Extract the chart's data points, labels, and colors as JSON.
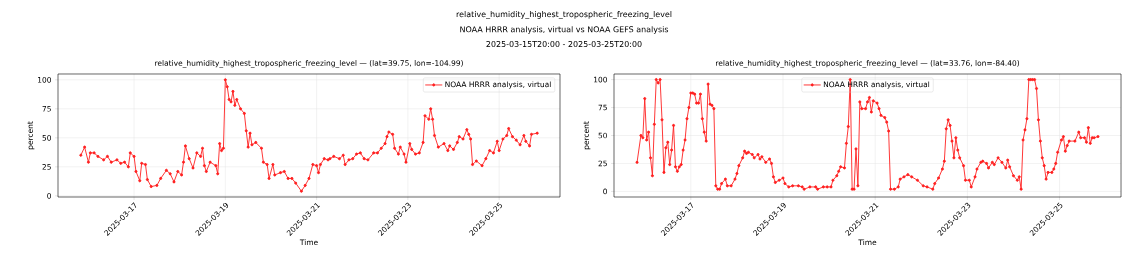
{
  "chart_data": [
    {
      "type": "other",
      "title": "relative_humidity_highest_tropospheric_freezing_level",
      "subtitle": "NOAA HRRR analysis, virtual vs NOAA GEFS analysis",
      "annotations": [
        "2025-03-15T20:00 - 2025-03-25T20:00"
      ]
    },
    {
      "type": "line",
      "title": "relative_humidity_highest_tropospheric_freezing_level — (lat=39.75, lon=-104.99)",
      "xlabel": "Time",
      "ylabel": "percent",
      "xlim": [
        "2025-03-15T08:00",
        "2025-03-26T08:00"
      ],
      "xticks": [
        "2025-03-17",
        "2025-03-19",
        "2025-03-21",
        "2025-03-23",
        "2025-03-25"
      ],
      "ylim": [
        -1,
        105
      ],
      "yticks": [
        0,
        25,
        50,
        75,
        100
      ],
      "grid": true,
      "legend": "top right",
      "marker": "circle",
      "line_style": "solid",
      "series": [
        {
          "name": "NOAA HRRR analysis, virtual",
          "color": "#ff2020",
          "x": [
            "2025-03-15T20:00",
            "2025-03-15T22:00",
            "2025-03-16T00:00",
            "2025-03-16T01:00",
            "2025-03-16T03:00",
            "2025-03-16T05:00",
            "2025-03-16T08:00",
            "2025-03-16T10:00",
            "2025-03-16T12:00",
            "2025-03-16T15:00",
            "2025-03-16T17:00",
            "2025-03-16T19:00",
            "2025-03-16T21:00",
            "2025-03-16T22:00",
            "2025-03-17T00:00",
            "2025-03-17T01:00",
            "2025-03-17T03:00",
            "2025-03-17T04:00",
            "2025-03-17T06:00",
            "2025-03-17T07:00",
            "2025-03-17T09:00",
            "2025-03-17T12:00",
            "2025-03-17T14:00",
            "2025-03-17T17:00",
            "2025-03-17T19:00",
            "2025-03-17T21:00",
            "2025-03-17T23:00",
            "2025-03-18T01:00",
            "2025-03-18T02:00",
            "2025-03-18T03:00",
            "2025-03-18T05:00",
            "2025-03-18T07:00",
            "2025-03-18T09:00",
            "2025-03-18T11:00",
            "2025-03-18T12:00",
            "2025-03-18T13:00",
            "2025-03-18T14:00",
            "2025-03-18T16:00",
            "2025-03-18T19:00",
            "2025-03-18T20:00",
            "2025-03-18T21:00",
            "2025-03-18T22:00",
            "2025-03-18T23:00",
            "2025-03-19T00:00",
            "2025-03-19T01:00",
            "2025-03-19T02:00",
            "2025-03-19T03:00",
            "2025-03-19T04:00",
            "2025-03-19T05:00",
            "2025-03-19T06:00",
            "2025-03-19T08:00",
            "2025-03-19T10:00",
            "2025-03-19T11:00",
            "2025-03-19T12:00",
            "2025-03-19T13:00",
            "2025-03-19T14:00",
            "2025-03-19T16:00",
            "2025-03-19T19:00",
            "2025-03-19T20:00",
            "2025-03-19T22:00",
            "2025-03-19T23:00",
            "2025-03-20T01:00",
            "2025-03-20T02:00",
            "2025-03-20T05:00",
            "2025-03-20T07:00",
            "2025-03-20T09:00",
            "2025-03-20T11:00",
            "2025-03-20T13:00",
            "2025-03-20T16:00",
            "2025-03-20T18:00",
            "2025-03-20T20:00",
            "2025-03-20T22:00",
            "2025-03-21T00:00",
            "2025-03-21T01:00",
            "2025-03-21T02:00",
            "2025-03-21T04:00",
            "2025-03-21T06:00",
            "2025-03-21T07:00",
            "2025-03-21T09:00",
            "2025-03-21T12:00",
            "2025-03-21T14:00",
            "2025-03-21T15:00",
            "2025-03-21T17:00",
            "2025-03-21T19:00",
            "2025-03-21T21:00",
            "2025-03-21T23:00",
            "2025-03-22T01:00",
            "2025-03-22T03:00",
            "2025-03-22T06:00",
            "2025-03-22T08:00",
            "2025-03-22T10:00",
            "2025-03-22T12:00",
            "2025-03-22T13:00",
            "2025-03-22T14:00",
            "2025-03-22T16:00",
            "2025-03-22T17:00",
            "2025-03-22T19:00",
            "2025-03-22T20:00",
            "2025-03-22T22:00",
            "2025-03-22T23:00",
            "2025-03-23T01:00",
            "2025-03-23T02:00",
            "2025-03-23T04:00",
            "2025-03-23T06:00",
            "2025-03-23T08:00",
            "2025-03-23T09:00",
            "2025-03-23T11:00",
            "2025-03-23T12:00",
            "2025-03-23T13:00",
            "2025-03-23T14:00",
            "2025-03-23T16:00",
            "2025-03-23T19:00",
            "2025-03-23T21:00",
            "2025-03-23T22:00",
            "2025-03-24T00:00",
            "2025-03-24T02:00",
            "2025-03-24T03:00",
            "2025-03-24T05:00",
            "2025-03-24T07:00",
            "2025-03-24T08:00",
            "2025-03-24T09:00",
            "2025-03-24T10:00",
            "2025-03-24T12:00",
            "2025-03-24T15:00",
            "2025-03-24T17:00",
            "2025-03-24T19:00",
            "2025-03-24T21:00",
            "2025-03-24T23:00",
            "2025-03-25T00:00",
            "2025-03-25T02:00",
            "2025-03-25T04:00",
            "2025-03-25T05:00",
            "2025-03-25T07:00",
            "2025-03-25T09:00",
            "2025-03-25T11:00",
            "2025-03-25T13:00",
            "2025-03-25T14:00",
            "2025-03-25T16:00",
            "2025-03-25T17:00",
            "2025-03-25T20:00"
          ],
          "values": [
            35,
            42,
            29,
            37,
            37,
            34,
            31,
            34,
            29,
            31,
            28,
            29,
            25,
            37,
            34,
            21,
            13,
            28,
            27,
            14,
            8,
            9,
            15,
            22,
            19,
            12,
            21,
            18,
            29,
            43,
            32,
            24,
            37,
            34,
            41,
            26,
            21,
            29,
            26,
            19,
            45,
            39,
            41,
            100,
            94,
            83,
            81,
            90,
            78,
            83,
            75,
            71,
            56,
            42,
            54,
            44,
            46,
            41,
            29,
            27,
            15,
            27,
            18,
            20,
            21,
            15,
            15,
            11,
            4,
            9,
            15,
            27,
            26,
            20,
            27,
            32,
            31,
            32,
            34,
            32,
            35,
            27,
            31,
            32,
            36,
            37,
            32,
            31,
            37,
            37,
            41,
            45,
            51,
            55,
            53,
            41,
            36,
            42,
            36,
            29,
            45,
            40,
            36,
            37,
            46,
            69,
            66,
            75,
            66,
            52,
            42,
            45,
            39,
            43,
            40,
            46,
            51,
            49,
            57,
            53,
            49,
            27,
            30,
            26,
            32,
            39,
            37,
            47,
            39,
            49,
            52,
            58,
            51,
            48,
            44,
            52,
            47,
            43,
            53,
            54
          ]
        }
      ]
    },
    {
      "type": "line",
      "title": "relative_humidity_highest_tropospheric_freezing_level — (lat=33.76, lon=-84.40)",
      "xlabel": "Time",
      "ylabel": "percent",
      "xlim": [
        "2025-03-15T08:00",
        "2025-03-26T08:00"
      ],
      "xticks": [
        "2025-03-17",
        "2025-03-19",
        "2025-03-21",
        "2025-03-23",
        "2025-03-25"
      ],
      "ylim": [
        -5,
        105
      ],
      "yticks": [
        0,
        25,
        50,
        75,
        100
      ],
      "grid": true,
      "legend": "top",
      "marker": "circle",
      "line_style": "solid",
      "series": [
        {
          "name": "NOAA HRRR analysis, virtual",
          "color": "#ff2020",
          "x": [
            "2025-03-15T20:00",
            "2025-03-15T22:00",
            "2025-03-15T23:00",
            "2025-03-16T00:00",
            "2025-03-16T01:00",
            "2025-03-16T02:00",
            "2025-03-16T03:00",
            "2025-03-16T04:00",
            "2025-03-16T05:00",
            "2025-03-16T06:00",
            "2025-03-16T07:00",
            "2025-03-16T08:00",
            "2025-03-16T09:00",
            "2025-03-16T10:00",
            "2025-03-16T11:00",
            "2025-03-16T12:00",
            "2025-03-16T13:00",
            "2025-03-16T14:00",
            "2025-03-16T15:00",
            "2025-03-16T16:00",
            "2025-03-16T17:00",
            "2025-03-16T18:00",
            "2025-03-16T19:00",
            "2025-03-16T20:00",
            "2025-03-16T21:00",
            "2025-03-16T22:00",
            "2025-03-16T23:00",
            "2025-03-17T00:00",
            "2025-03-17T01:00",
            "2025-03-17T02:00",
            "2025-03-17T03:00",
            "2025-03-17T04:00",
            "2025-03-17T05:00",
            "2025-03-17T06:00",
            "2025-03-17T07:00",
            "2025-03-17T08:00",
            "2025-03-17T09:00",
            "2025-03-17T10:00",
            "2025-03-17T11:00",
            "2025-03-17T12:00",
            "2025-03-17T13:00",
            "2025-03-17T14:00",
            "2025-03-17T15:00",
            "2025-03-17T16:00",
            "2025-03-17T18:00",
            "2025-03-17T19:00",
            "2025-03-17T21:00",
            "2025-03-17T23:00",
            "2025-03-18T00:00",
            "2025-03-18T01:00",
            "2025-03-18T03:00",
            "2025-03-18T04:00",
            "2025-03-18T05:00",
            "2025-03-18T06:00",
            "2025-03-18T08:00",
            "2025-03-18T09:00",
            "2025-03-18T11:00",
            "2025-03-18T12:00",
            "2025-03-18T13:00",
            "2025-03-18T15:00",
            "2025-03-18T17:00",
            "2025-03-18T18:00",
            "2025-03-18T19:00",
            "2025-03-18T20:00",
            "2025-03-18T22:00",
            "2025-03-19T00:00",
            "2025-03-19T01:00",
            "2025-03-19T03:00",
            "2025-03-19T05:00",
            "2025-03-19T08:00",
            "2025-03-19T10:00",
            "2025-03-19T11:00",
            "2025-03-19T14:00",
            "2025-03-19T17:00",
            "2025-03-19T18:00",
            "2025-03-19T21:00",
            "2025-03-19T23:00",
            "2025-03-20T01:00",
            "2025-03-20T02:00",
            "2025-03-20T04:00",
            "2025-03-20T05:00",
            "2025-03-20T06:00",
            "2025-03-20T08:00",
            "2025-03-20T09:00",
            "2025-03-20T10:00",
            "2025-03-20T11:00",
            "2025-03-20T12:00",
            "2025-03-20T13:00",
            "2025-03-20T14:00",
            "2025-03-20T15:00",
            "2025-03-20T16:00",
            "2025-03-20T17:00",
            "2025-03-20T19:00",
            "2025-03-20T20:00",
            "2025-03-20T21:00",
            "2025-03-20T22:00",
            "2025-03-20T23:00",
            "2025-03-21T01:00",
            "2025-03-21T02:00",
            "2025-03-21T03:00",
            "2025-03-21T05:00",
            "2025-03-21T06:00",
            "2025-03-21T07:00",
            "2025-03-21T08:00",
            "2025-03-21T10:00",
            "2025-03-21T12:00",
            "2025-03-21T13:00",
            "2025-03-21T15:00",
            "2025-03-21T17:00",
            "2025-03-21T19:00",
            "2025-03-21T22:00",
            "2025-03-22T01:00",
            "2025-03-22T03:00",
            "2025-03-22T06:00",
            "2025-03-22T07:00",
            "2025-03-22T09:00",
            "2025-03-22T11:00",
            "2025-03-22T12:00",
            "2025-03-22T13:00",
            "2025-03-22T14:00",
            "2025-03-22T15:00",
            "2025-03-22T16:00",
            "2025-03-22T17:00",
            "2025-03-22T18:00",
            "2025-03-22T19:00",
            "2025-03-22T20:00",
            "2025-03-22T22:00",
            "2025-03-22T23:00",
            "2025-03-23T01:00",
            "2025-03-23T02:00",
            "2025-03-23T04:00",
            "2025-03-23T05:00",
            "2025-03-23T07:00",
            "2025-03-23T08:00",
            "2025-03-23T10:00",
            "2025-03-23T11:00",
            "2025-03-23T13:00",
            "2025-03-23T14:00",
            "2025-03-23T16:00",
            "2025-03-23T18:00",
            "2025-03-23T20:00",
            "2025-03-23T21:00",
            "2025-03-23T22:00",
            "2025-03-24T00:00",
            "2025-03-24T02:00",
            "2025-03-24T03:00",
            "2025-03-24T04:00",
            "2025-03-24T05:00",
            "2025-03-24T06:00",
            "2025-03-24T07:00",
            "2025-03-24T08:00",
            "2025-03-24T09:00",
            "2025-03-24T10:00",
            "2025-03-24T11:00",
            "2025-03-24T12:00",
            "2025-03-24T13:00",
            "2025-03-24T14:00",
            "2025-03-24T15:00",
            "2025-03-24T16:00",
            "2025-03-24T17:00",
            "2025-03-24T18:00",
            "2025-03-24T20:00",
            "2025-03-24T21:00",
            "2025-03-24T22:00",
            "2025-03-24T23:00",
            "2025-03-25T01:00",
            "2025-03-25T02:00",
            "2025-03-25T03:00",
            "2025-03-25T04:00",
            "2025-03-25T05:00",
            "2025-03-25T08:00",
            "2025-03-25T10:00",
            "2025-03-25T11:00",
            "2025-03-25T13:00",
            "2025-03-25T14:00",
            "2025-03-25T15:00",
            "2025-03-25T16:00",
            "2025-03-25T17:00",
            "2025-03-25T18:00",
            "2025-03-25T20:00"
          ],
          "values": [
            26,
            50,
            48,
            83,
            46,
            53,
            30,
            14,
            60,
            100,
            97,
            100,
            64,
            17,
            39,
            44,
            24,
            37,
            59,
            22,
            18,
            22,
            24,
            37,
            46,
            65,
            75,
            88,
            88,
            87,
            79,
            79,
            87,
            65,
            53,
            45,
            96,
            78,
            77,
            74,
            5,
            2,
            2,
            7,
            11,
            5,
            5,
            11,
            16,
            23,
            30,
            36,
            34,
            35,
            33,
            30,
            33,
            29,
            31,
            26,
            29,
            25,
            13,
            8,
            10,
            12,
            7,
            4,
            5,
            5,
            4,
            2,
            4,
            4,
            2,
            4,
            4,
            4,
            10,
            14,
            18,
            22,
            21,
            43,
            58,
            100,
            2,
            2,
            38,
            5,
            80,
            74,
            74,
            80,
            84,
            71,
            81,
            79,
            74,
            68,
            66,
            62,
            54,
            2,
            2,
            4,
            11,
            13,
            15,
            13,
            10,
            5,
            4,
            2,
            7,
            12,
            20,
            27,
            56,
            64,
            59,
            45,
            30,
            48,
            37,
            30,
            23,
            10,
            10,
            4,
            13,
            20,
            26,
            27,
            25,
            21,
            26,
            24,
            30,
            26,
            21,
            28,
            22,
            14,
            10,
            13,
            2,
            46,
            55,
            65,
            100,
            100,
            100,
            100,
            92,
            64,
            45,
            30,
            23,
            11,
            17,
            17,
            20,
            25,
            35,
            46,
            49,
            36,
            41,
            45,
            45,
            53,
            48,
            48,
            44,
            57,
            43,
            48,
            48,
            49
          ]
        }
      ]
    }
  ]
}
